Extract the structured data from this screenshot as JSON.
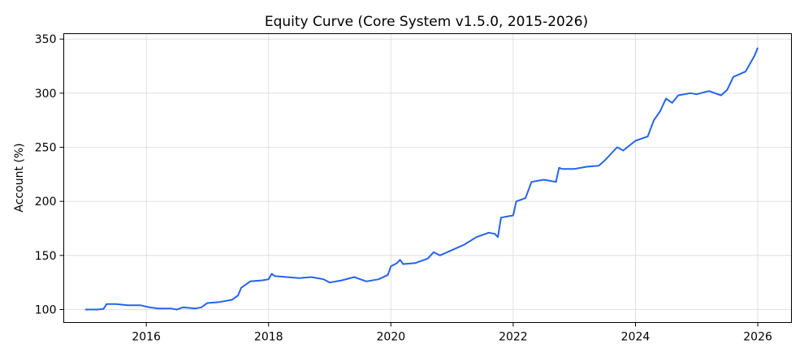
{
  "chart_data": {
    "type": "line",
    "title": "Equity Curve (Core System v1.5.0, 2015-2026)",
    "xlabel": "",
    "ylabel": "Account (%)",
    "xlim": [
      2014.65,
      2026.55
    ],
    "ylim": [
      88,
      355
    ],
    "xticks": [
      2016,
      2018,
      2020,
      2022,
      2024,
      2026
    ],
    "xtick_labels": [
      "2016",
      "2018",
      "2020",
      "2022",
      "2024",
      "2026"
    ],
    "yticks": [
      100,
      150,
      200,
      250,
      300,
      350
    ],
    "ytick_labels": [
      "100",
      "150",
      "200",
      "250",
      "300",
      "350"
    ],
    "grid": true,
    "line_color": "#2563eb",
    "series": [
      {
        "x": [
          2015.0,
          2015.2,
          2015.3,
          2015.35,
          2015.5,
          2015.7,
          2015.9,
          2016.05,
          2016.2,
          2016.4,
          2016.5,
          2016.6,
          2016.8,
          2016.9,
          2017.0,
          2017.2,
          2017.4,
          2017.5,
          2017.55,
          2017.7,
          2017.9,
          2018.0,
          2018.05,
          2018.1,
          2018.3,
          2018.5,
          2018.7,
          2018.9,
          2019.0,
          2019.2,
          2019.4,
          2019.5,
          2019.6,
          2019.8,
          2019.95,
          2020.0,
          2020.1,
          2020.15,
          2020.2,
          2020.4,
          2020.6,
          2020.7,
          2020.8,
          2021.0,
          2021.2,
          2021.4,
          2021.6,
          2021.7,
          2021.75,
          2021.8,
          2022.0,
          2022.05,
          2022.2,
          2022.3,
          2022.5,
          2022.7,
          2022.75,
          2022.8,
          2023.0,
          2023.2,
          2023.4,
          2023.5,
          2023.7,
          2023.8,
          2024.0,
          2024.2,
          2024.3,
          2024.4,
          2024.5,
          2024.6,
          2024.7,
          2024.9,
          2025.0,
          2025.2,
          2025.4,
          2025.5,
          2025.6,
          2025.8,
          2025.95,
          2026.0
        ],
        "y": [
          100,
          100,
          100.5,
          105,
          105,
          104,
          104,
          102,
          101,
          101,
          100,
          102,
          101,
          102,
          106,
          107,
          109,
          113,
          120,
          126,
          127,
          128,
          133,
          131,
          130,
          129,
          130,
          128,
          125,
          127,
          130,
          128,
          126,
          128,
          132,
          140,
          143,
          146,
          142,
          143,
          147,
          153,
          150,
          155,
          160,
          167,
          171,
          170,
          167,
          185,
          187,
          200,
          203,
          218,
          220,
          218,
          231,
          230,
          230,
          232,
          233,
          238,
          250,
          247,
          256,
          260,
          275,
          283,
          295,
          291,
          298,
          300,
          299,
          302,
          298,
          303,
          315,
          320,
          335,
          342
        ]
      }
    ]
  }
}
